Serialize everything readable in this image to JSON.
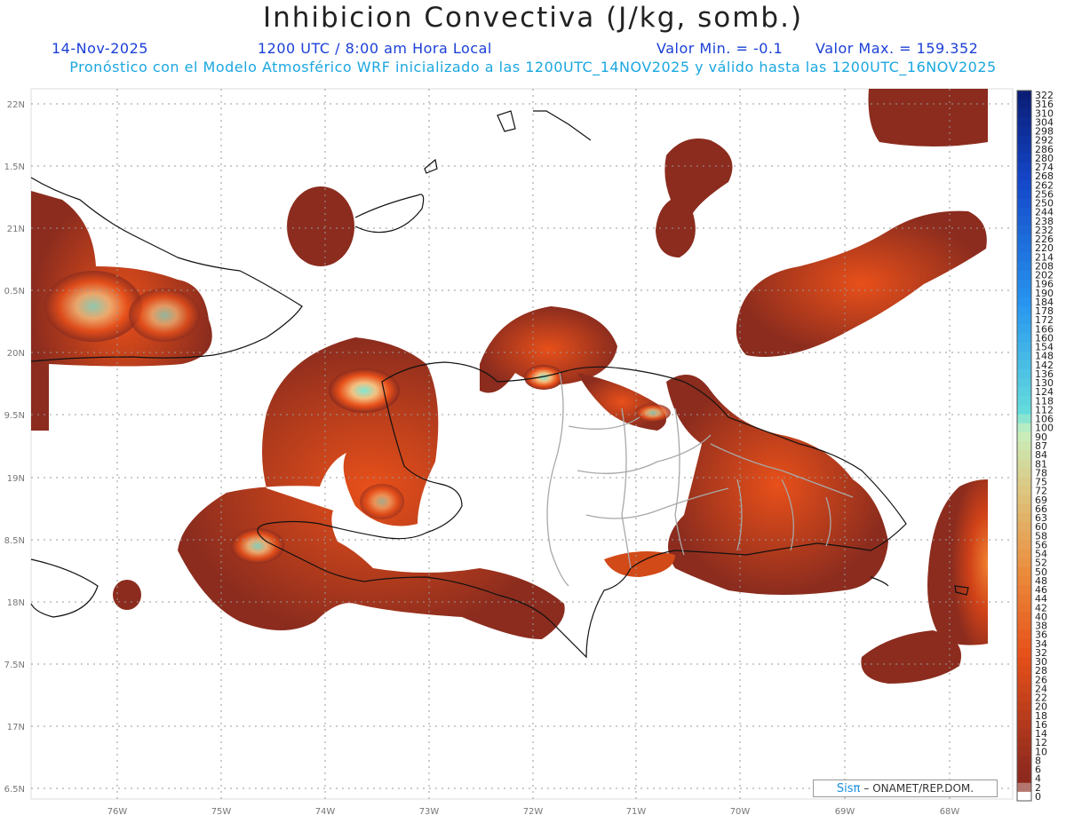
{
  "title": "Inhibicion Convectiva (J/kg, somb.)",
  "subtitle": {
    "date": "14-Nov-2025",
    "time": "1200 UTC / 8:00 am Hora Local",
    "value_min": "Valor Min. = -0.1",
    "value_max": "Valor Max. = 159.352",
    "description": "Pronóstico con el Modelo Atmosférico WRF inicializado a las 1200UTC_14NOV2025 y válido hasta las  1200UTC_16NOV2025"
  },
  "axes": {
    "lon_labels": [
      "76W",
      "75W",
      "74W",
      "73W",
      "72W",
      "71W",
      "70W",
      "69W",
      "68W"
    ],
    "lat_labels": [
      "22N",
      "1.5N",
      "21N",
      "0.5N",
      "20N",
      "9.5N",
      "19N",
      "8.5N",
      "18N",
      "7.5N",
      "17N",
      "6.5N"
    ]
  },
  "colorbar": {
    "labels": [
      "322",
      "316",
      "310",
      "304",
      "298",
      "292",
      "286",
      "280",
      "274",
      "268",
      "262",
      "256",
      "250",
      "244",
      "238",
      "232",
      "226",
      "220",
      "214",
      "208",
      "202",
      "196",
      "190",
      "184",
      "178",
      "172",
      "166",
      "160",
      "154",
      "148",
      "142",
      "136",
      "130",
      "124",
      "118",
      "112",
      "106",
      "100",
      "90",
      "87",
      "84",
      "81",
      "78",
      "75",
      "72",
      "69",
      "66",
      "63",
      "60",
      "58",
      "56",
      "54",
      "52",
      "50",
      "48",
      "46",
      "44",
      "42",
      "40",
      "38",
      "36",
      "34",
      "32",
      "30",
      "28",
      "26",
      "24",
      "22",
      "20",
      "18",
      "16",
      "14",
      "12",
      "10",
      "8",
      "6",
      "4",
      "2",
      "0"
    ]
  },
  "credit": {
    "brand": "Sisπ",
    "text": "– ONAMET/REP.DOM."
  },
  "colors": {
    "low": "#8b2c1e",
    "mid": "#e8501a",
    "high": "#f3c080",
    "peak": "#7fe8d4",
    "top": "#0a2a8a"
  }
}
